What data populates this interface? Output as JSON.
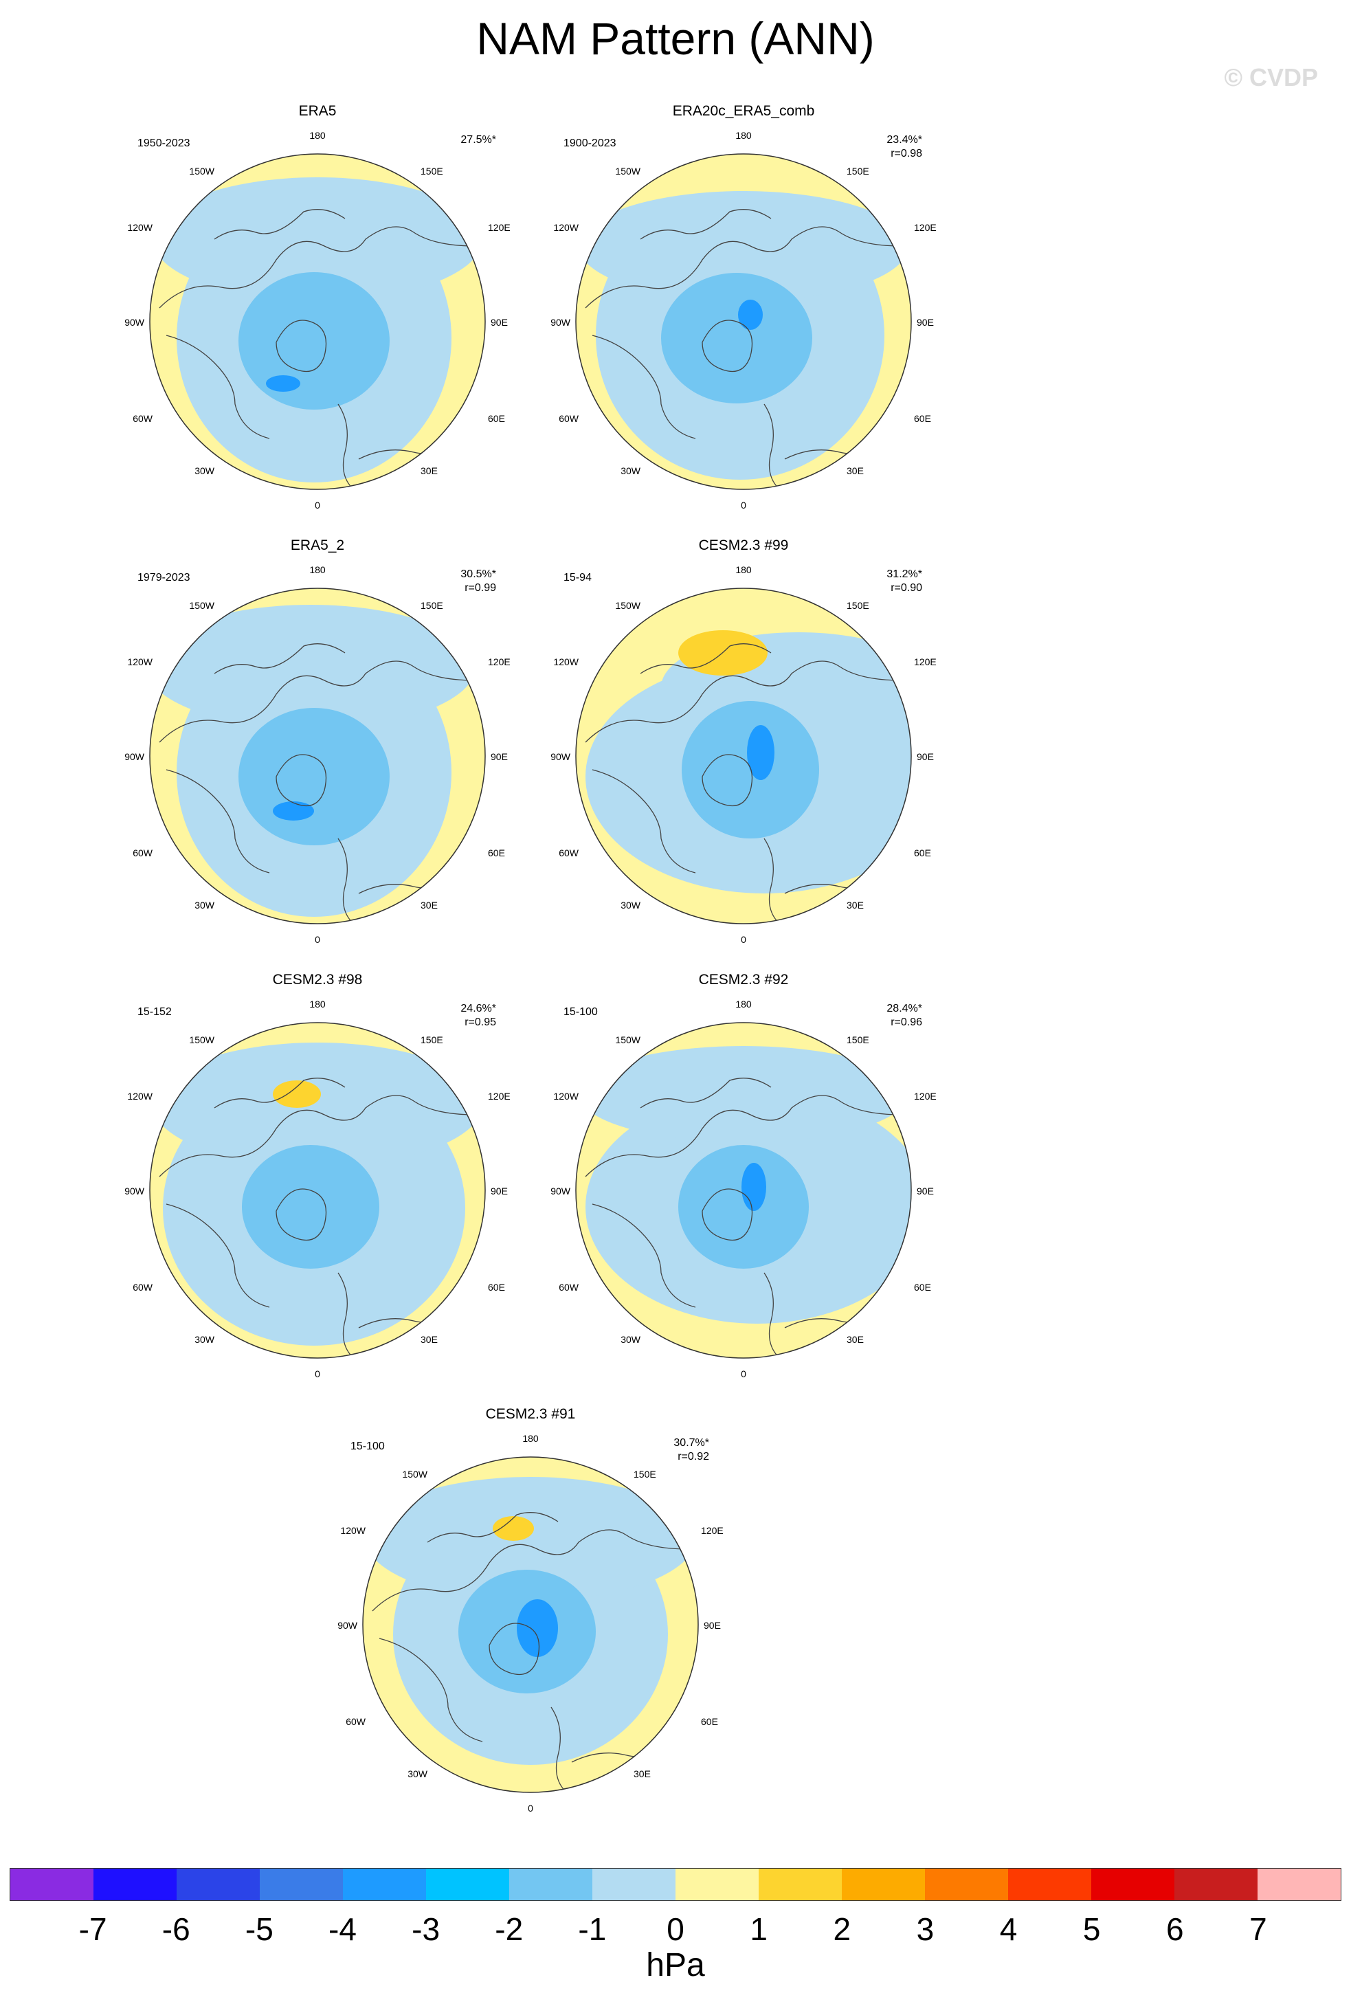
{
  "title": "NAM Pattern (ANN)",
  "watermark": "© CVDP",
  "longitude_labels": {
    "top": "180",
    "bottom": "0",
    "upper_left": "150W",
    "upper_right": "150E",
    "mid_upper_left": "120W",
    "mid_upper_right": "120E",
    "left": "90W",
    "right": "90E",
    "mid_lower_left": "60W",
    "mid_lower_right": "60E",
    "lower_left": "30W",
    "lower_right": "30E"
  },
  "panels": [
    {
      "title": "ERA5",
      "period": "1950-2023",
      "variance": "27.5%*",
      "r": ""
    },
    {
      "title": "ERA20c_ERA5_comb",
      "period": "1900-2023",
      "variance": "23.4%*",
      "r": "r=0.98"
    },
    {
      "title": "ERA5_2",
      "period": "1979-2023",
      "variance": "30.5%*",
      "r": "r=0.99"
    },
    {
      "title": "CESM2.3 #99",
      "period": "15-94",
      "variance": "31.2%*",
      "r": "r=0.90"
    },
    {
      "title": "CESM2.3 #98",
      "period": "15-152",
      "variance": "24.6%*",
      "r": "r=0.95"
    },
    {
      "title": "CESM2.3 #92",
      "period": "15-100",
      "variance": "28.4%*",
      "r": "r=0.96"
    },
    {
      "title": "CESM2.3 #91",
      "period": "15-100",
      "variance": "30.7%*",
      "r": "r=0.92"
    }
  ],
  "colorbar": {
    "unit": "hPa",
    "labels": [
      "-7",
      "-6",
      "-5",
      "-4",
      "-3",
      "-2",
      "-1",
      "0",
      "1",
      "2",
      "3",
      "4",
      "5",
      "6",
      "7"
    ],
    "colors": [
      "#8a2be2",
      "#1e10ff",
      "#2b44e8",
      "#3a7ce8",
      "#1e9bff",
      "#00c3ff",
      "#73c6f2",
      "#b3dcf2",
      "#fef6a0",
      "#fdd42f",
      "#fdab00",
      "#fd7a00",
      "#fd3a00",
      "#e60000",
      "#c81e1e",
      "#ffb6b6"
    ]
  },
  "colors": {
    "neutral_positive": "#fef6a0",
    "weak_negative": "#b3dcf2",
    "moderate_negative": "#73c6f2",
    "strong_negative": "#1e9bff",
    "weak_positive": "#fdd42f"
  }
}
